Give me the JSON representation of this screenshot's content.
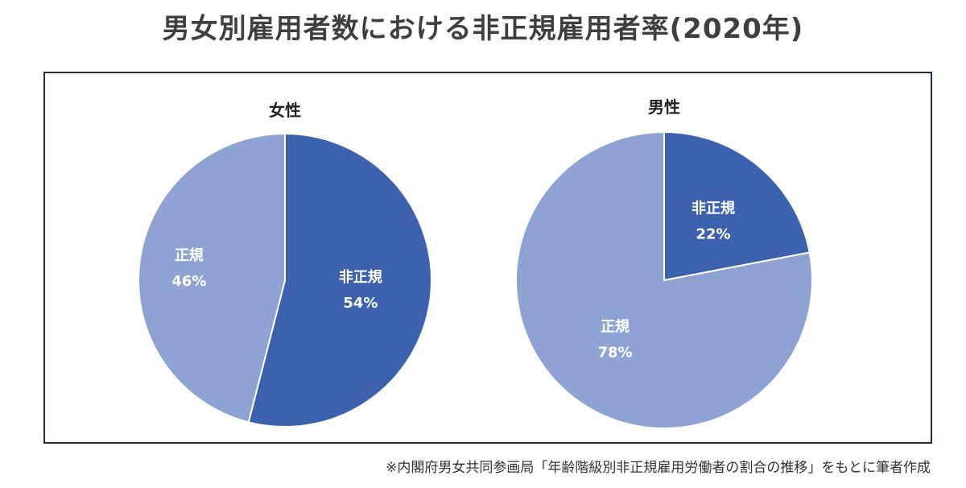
{
  "title": "男女別雇用者数における非正規雇用者率(2020年)",
  "source_note": "※内閣府男女共同参画局「年齢階級別非正規雇用労働者の割合の推移」をもとに筆者作成",
  "colors": {
    "non_regular": "#3c61ad",
    "regular": "#8ea2d4",
    "frame": "#1f2a4d"
  },
  "chart_data": [
    {
      "type": "pie",
      "title": "女性",
      "slices": [
        {
          "label": "非正規",
          "value": 54,
          "pct_label": "54%",
          "color": "#3c61ad"
        },
        {
          "label": "正規",
          "value": 46,
          "pct_label": "46%",
          "color": "#8ea2d4"
        }
      ]
    },
    {
      "type": "pie",
      "title": "男性",
      "slices": [
        {
          "label": "非正規",
          "value": 22,
          "pct_label": "22%",
          "color": "#3c61ad"
        },
        {
          "label": "正規",
          "value": 78,
          "pct_label": "78%",
          "color": "#8ea2d4"
        }
      ]
    }
  ]
}
